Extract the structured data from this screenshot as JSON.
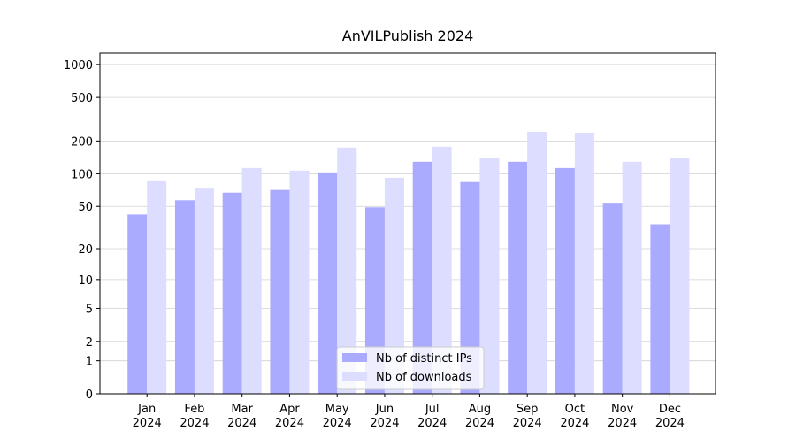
{
  "chart_data": {
    "type": "bar",
    "title": "AnVILPublish 2024",
    "categories": [
      "Jan\n2024",
      "Feb\n2024",
      "Mar\n2024",
      "Apr\n2024",
      "May\n2024",
      "Jun\n2024",
      "Jul\n2024",
      "Aug\n2024",
      "Sep\n2024",
      "Oct\n2024",
      "Nov\n2024",
      "Dec\n2024"
    ],
    "series": [
      {
        "name": "Nb of distinct IPs",
        "color": "#aaaaff",
        "values": [
          42,
          57,
          67,
          71,
          103,
          49,
          129,
          84,
          129,
          113,
          54,
          34
        ]
      },
      {
        "name": "Nb of downloads",
        "color": "#ddddff",
        "values": [
          87,
          73,
          113,
          107,
          174,
          92,
          177,
          141,
          243,
          238,
          129,
          139
        ]
      }
    ],
    "yscale": "log1p",
    "ylim": [
      0,
      1270
    ],
    "yticks": [
      0,
      1,
      2,
      5,
      10,
      20,
      50,
      100,
      200,
      500,
      1000
    ],
    "grid": true,
    "legend": "lower center"
  }
}
